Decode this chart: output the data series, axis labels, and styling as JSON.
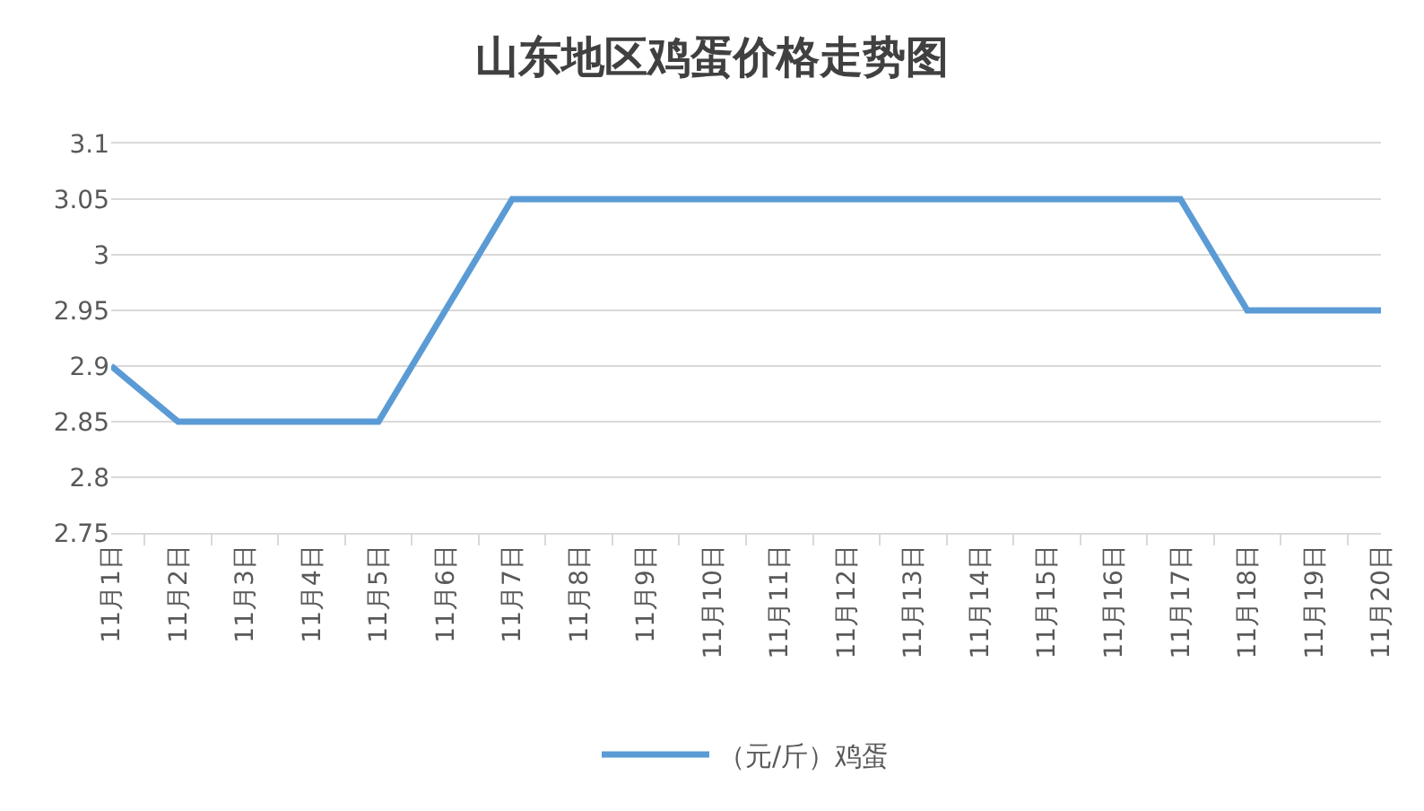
{
  "chart_data": {
    "type": "line",
    "title": "山东地区鸡蛋价格走势图",
    "categories": [
      "11月1日",
      "11月2日",
      "11月3日",
      "11月4日",
      "11月5日",
      "11月6日",
      "11月7日",
      "11月8日",
      "11月9日",
      "11月10日",
      "11月11日",
      "11月12日",
      "11月13日",
      "11月14日",
      "11月15日",
      "11月16日",
      "11月17日",
      "11月18日",
      "11月19日",
      "11月20日"
    ],
    "series": [
      {
        "name": "（元/斤）鸡蛋",
        "color": "#5b9bd5",
        "values": [
          2.9,
          2.85,
          2.85,
          2.85,
          2.85,
          2.95,
          3.05,
          3.05,
          3.05,
          3.05,
          3.05,
          3.05,
          3.05,
          3.05,
          3.05,
          3.05,
          3.05,
          2.95,
          2.95,
          2.95
        ]
      }
    ],
    "ylim": [
      2.75,
      3.1
    ],
    "yticks": [
      2.75,
      2.8,
      2.85,
      2.9,
      2.95,
      3,
      3.05,
      3.1
    ],
    "grid": "y",
    "legend": "bottom",
    "marker": "none",
    "line_style": "solid"
  }
}
